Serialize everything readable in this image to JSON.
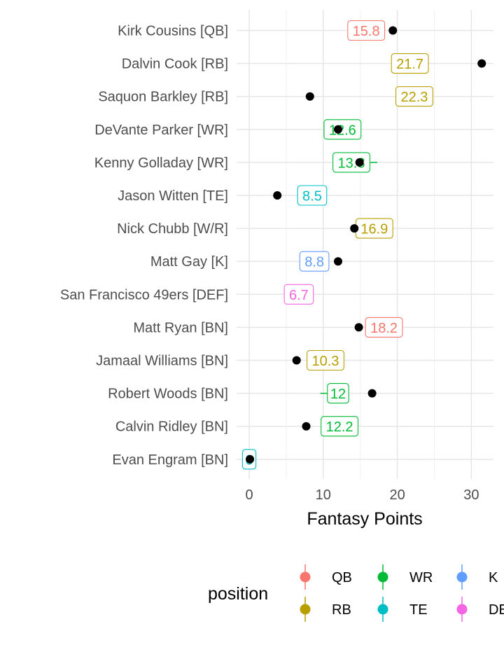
{
  "chart_data": {
    "type": "scatter",
    "xlabel": "Fantasy Points",
    "xlim": [
      -1.2,
      33
    ],
    "x_ticks": [
      0,
      10,
      20,
      30
    ],
    "grid": true,
    "legend": {
      "title": "position",
      "placement": "bottom",
      "entries": [
        {
          "label": "QB",
          "color": "#F8766D"
        },
        {
          "label": "WR",
          "color": "#00BA38"
        },
        {
          "label": "K",
          "color": "#619CFF"
        },
        {
          "label": "RB",
          "color": "#B79F00"
        },
        {
          "label": "TE",
          "color": "#00BFC4"
        },
        {
          "label": "DEF",
          "color": "#F564E3"
        }
      ]
    },
    "colors": {
      "QB": "#F8766D",
      "RB": "#B79F00",
      "WR": "#00BA38",
      "TE": "#00BFC4",
      "K": "#619CFF",
      "DEF": "#F564E3"
    },
    "players": [
      {
        "label": "Kirk Cousins [QB]",
        "position": "QB",
        "projected": 15.8,
        "actual": 19.4
      },
      {
        "label": "Dalvin Cook [RB]",
        "position": "RB",
        "projected": 21.7,
        "actual": 31.4
      },
      {
        "label": "Saquon Barkley [RB]",
        "position": "RB",
        "projected": 22.3,
        "actual": 8.2
      },
      {
        "label": "DeVante Parker [WR]",
        "position": "WR",
        "projected": 12.6,
        "actual": 12.0,
        "low": 10.8,
        "high": 13.8
      },
      {
        "label": "Kenny Golladay [WR]",
        "position": "WR",
        "projected": 13.8,
        "actual": 14.9,
        "low": 11.8,
        "high": 17.3
      },
      {
        "label": "Jason Witten [TE]",
        "position": "TE",
        "projected": 8.5,
        "actual": 3.8
      },
      {
        "label": "Nick Chubb [W/R]",
        "position": "RB",
        "projected": 16.9,
        "actual": 14.2
      },
      {
        "label": "Matt Gay [K]",
        "position": "K",
        "projected": 8.8,
        "actual": 12.0
      },
      {
        "label": "San Francisco 49ers [DEF]",
        "position": "DEF",
        "projected": 6.7,
        "actual": null
      },
      {
        "label": "Matt Ryan [BN]",
        "position": "QB",
        "projected": 18.2,
        "actual": 14.8
      },
      {
        "label": "Jamaal Williams [BN]",
        "position": "RB",
        "projected": 10.3,
        "actual": 6.4
      },
      {
        "label": "Robert Woods [BN]",
        "position": "WR",
        "projected": 12.0,
        "actual": 16.6,
        "low": 9.6,
        "high": 12.0
      },
      {
        "label": "Calvin Ridley [BN]",
        "position": "WR",
        "projected": 12.2,
        "actual": 7.7
      },
      {
        "label": "Evan Engram [BN]",
        "position": "TE",
        "projected": 0,
        "actual": 0.1
      }
    ]
  }
}
